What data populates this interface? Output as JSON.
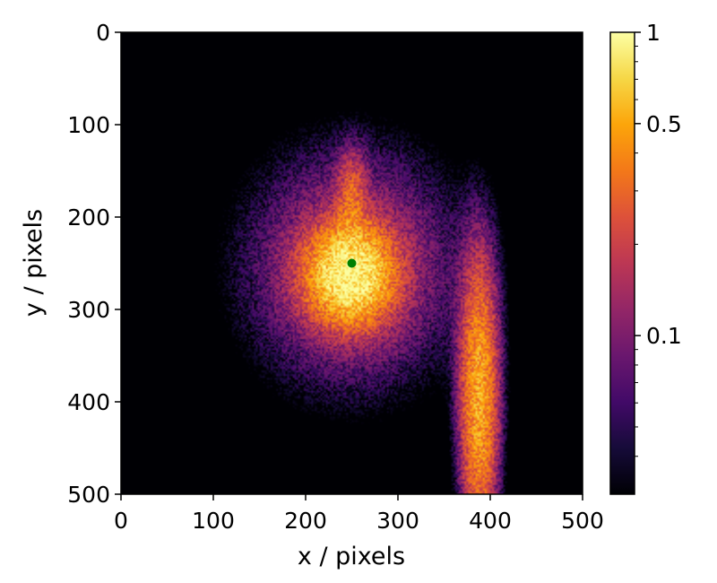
{
  "chart_data": {
    "type": "heatmap",
    "xlabel": "x / pixels",
    "ylabel": "y / pixels",
    "xlim": [
      0,
      500
    ],
    "ylim": [
      500,
      0
    ],
    "x_ticks": [
      "0",
      "100",
      "200",
      "300",
      "400",
      "500"
    ],
    "y_ticks": [
      "0",
      "100",
      "200",
      "300",
      "400",
      "500"
    ],
    "x_tick_values": [
      0,
      100,
      200,
      300,
      400,
      500
    ],
    "y_tick_values": [
      0,
      100,
      200,
      300,
      400,
      500
    ],
    "colormap": "inferno",
    "colorbar": {
      "scale": "log",
      "range": [
        0.03,
        1
      ],
      "ticks": [
        "1",
        "0.5",
        "0.1"
      ],
      "tick_values": [
        1,
        0.5,
        0.1
      ],
      "minor_tick_values": [
        0.04,
        0.05,
        0.06,
        0.07,
        0.08,
        0.09,
        0.2,
        0.3,
        0.4,
        0.6,
        0.7,
        0.8,
        0.9
      ]
    },
    "intensity_components": [
      {
        "shape": "core",
        "center": [
          248,
          262
        ],
        "sigma": [
          28,
          32
        ],
        "amplitude": 0.9
      },
      {
        "shape": "halo",
        "center": [
          250,
          255
        ],
        "sigma": [
          75,
          85
        ],
        "amplitude": 0.16
      },
      {
        "shape": "stem",
        "center": [
          388,
          398
        ],
        "sigma": [
          13,
          95
        ],
        "amplitude": 0.52
      },
      {
        "shape": "spike",
        "center": [
          250,
          175
        ],
        "sigma": [
          10,
          30
        ],
        "amplitude": 0.2
      }
    ],
    "marker": {
      "x": 250,
      "y": 250,
      "color": "#008000"
    }
  }
}
